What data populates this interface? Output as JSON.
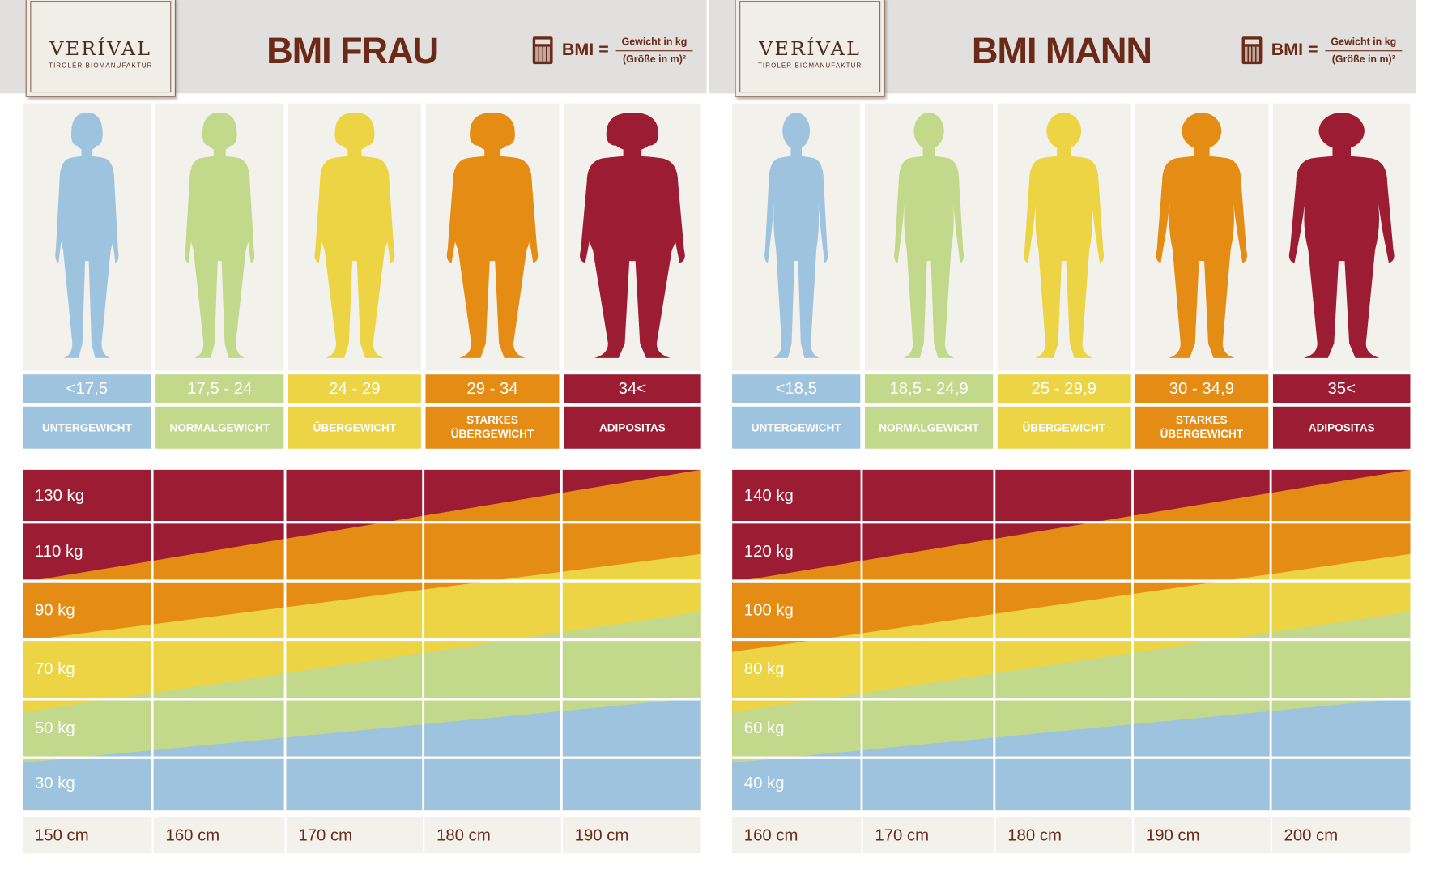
{
  "colors": {
    "blue": "#9ec3de",
    "green": "#c2d88a",
    "yellow": "#ecd445",
    "orange": "#e58c14",
    "red": "#9b1c33",
    "brown": "#6b2a17"
  },
  "logo": {
    "name": "VERÍVAL",
    "subtitle": "TIROLER BIOMANUFAKTUR"
  },
  "formula": {
    "label": "BMI =",
    "numerator": "Gewicht in kg",
    "denominator": "(Größe in m)²",
    "icon": "calculator-icon"
  },
  "panels": [
    {
      "title": "BMI FRAU",
      "figure": "female",
      "categories": [
        {
          "range": "<17,5",
          "label": "UNTERGEWICHT",
          "color": "blue"
        },
        {
          "range": "17,5 - 24",
          "label": "NORMALGEWICHT",
          "color": "green"
        },
        {
          "range": "24 - 29",
          "label": "ÜBERGEWICHT",
          "color": "yellow"
        },
        {
          "range": "29 - 34",
          "label": "STARKES\nÜBERGEWICHT",
          "color": "orange"
        },
        {
          "range": "34<",
          "label": "ADIPOSITAS",
          "color": "red"
        }
      ],
      "weights": [
        "130 kg",
        "110 kg",
        "90 kg",
        "70 kg",
        "50 kg",
        "30 kg"
      ],
      "heights": [
        "150 cm",
        "160 cm",
        "170 cm",
        "180 cm",
        "190 cm"
      ]
    },
    {
      "title": "BMI MANN",
      "figure": "male",
      "categories": [
        {
          "range": "<18,5",
          "label": "UNTERGEWICHT",
          "color": "blue"
        },
        {
          "range": "18,5 - 24,9",
          "label": "NORMALGEWICHT",
          "color": "green"
        },
        {
          "range": "25 - 29,9",
          "label": "ÜBERGEWICHT",
          "color": "yellow"
        },
        {
          "range": "30 - 34,9",
          "label": "STARKES\nÜBERGEWICHT",
          "color": "orange"
        },
        {
          "range": "35<",
          "label": "ADIPOSITAS",
          "color": "red"
        }
      ],
      "weights": [
        "140 kg",
        "120 kg",
        "100 kg",
        "80 kg",
        "60 kg",
        "40 kg"
      ],
      "heights": [
        "160 cm",
        "170 cm",
        "180 cm",
        "190 cm",
        "200 cm"
      ]
    }
  ]
}
